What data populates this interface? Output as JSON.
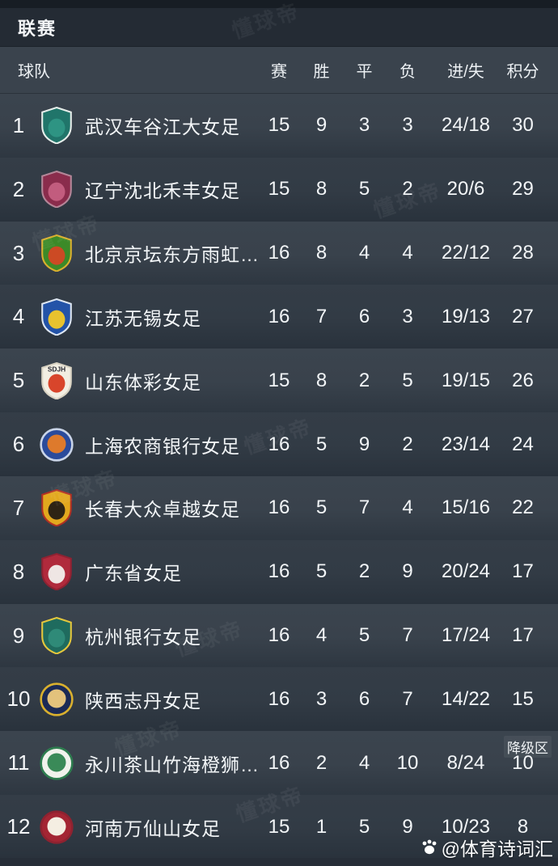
{
  "title_bar": {
    "title": "联赛"
  },
  "table": {
    "columns": {
      "team": "球队",
      "played": "赛",
      "won": "胜",
      "drawn": "平",
      "lost": "负",
      "goals": "进/失",
      "points": "积分"
    },
    "relegation_label": "降级区",
    "rows": [
      {
        "rank": "1",
        "team": "武汉车谷江大女足",
        "played": "15",
        "won": "9",
        "drawn": "3",
        "lost": "3",
        "goals": "24/18",
        "points": "30",
        "badge": {
          "shape": "shield",
          "c1": "#20756A",
          "c2": "#2E9483",
          "c3": "#E6EEEA",
          "text": ""
        }
      },
      {
        "rank": "2",
        "team": "辽宁沈北禾丰女足",
        "played": "15",
        "won": "8",
        "drawn": "5",
        "lost": "2",
        "goals": "20/6",
        "points": "29",
        "badge": {
          "shape": "shield",
          "c1": "#8A2C4C",
          "c2": "#C25C7E",
          "c3": "#B48698",
          "text": ""
        }
      },
      {
        "rank": "3",
        "team": "北京京坛东方雨虹…",
        "played": "16",
        "won": "8",
        "drawn": "4",
        "lost": "4",
        "goals": "22/12",
        "points": "28",
        "badge": {
          "shape": "shield",
          "c1": "#3C8A28",
          "c2": "#CC4A24",
          "c3": "#D9B02E",
          "text": ""
        }
      },
      {
        "rank": "4",
        "team": "江苏无锡女足",
        "played": "16",
        "won": "7",
        "drawn": "6",
        "lost": "3",
        "goals": "19/13",
        "points": "27",
        "badge": {
          "shape": "shield",
          "c1": "#2353A8",
          "c2": "#E8C22E",
          "c3": "#DDE6F2",
          "text": ""
        }
      },
      {
        "rank": "5",
        "team": "山东体彩女足",
        "played": "15",
        "won": "8",
        "drawn": "2",
        "lost": "5",
        "goals": "19/15",
        "points": "26",
        "badge": {
          "shape": "shield",
          "c1": "#F2EEE2",
          "c2": "#D8452B",
          "c3": "#D8D2C2",
          "text": "SDJH",
          "textColor": "#2A2A33"
        }
      },
      {
        "rank": "6",
        "team": "上海农商银行女足",
        "played": "16",
        "won": "5",
        "drawn": "9",
        "lost": "2",
        "goals": "23/14",
        "points": "24",
        "badge": {
          "shape": "circle",
          "c1": "#2B4B9B",
          "c2": "#DE7A2C",
          "c3": "#C9D4E8",
          "text": ""
        }
      },
      {
        "rank": "7",
        "team": "长春大众卓越女足",
        "played": "16",
        "won": "5",
        "drawn": "7",
        "lost": "4",
        "goals": "15/16",
        "points": "22",
        "badge": {
          "shape": "shield",
          "c1": "#E2A81E",
          "c2": "#2E2414",
          "c3": "#B03024",
          "text": ""
        }
      },
      {
        "rank": "8",
        "team": "广东省女足",
        "played": "16",
        "won": "5",
        "drawn": "2",
        "lost": "9",
        "goals": "20/24",
        "points": "17",
        "badge": {
          "shape": "shield",
          "c1": "#B02A3C",
          "c2": "#EFE6E4",
          "c3": "#8E2232",
          "text": ""
        }
      },
      {
        "rank": "9",
        "team": "杭州银行女足",
        "played": "16",
        "won": "4",
        "drawn": "5",
        "lost": "7",
        "goals": "17/24",
        "points": "17",
        "badge": {
          "shape": "shield",
          "c1": "#1F6B5E",
          "c2": "#2F8A78",
          "c3": "#E4C73C",
          "text": ""
        }
      },
      {
        "rank": "10",
        "team": "陕西志丹女足",
        "played": "16",
        "won": "3",
        "drawn": "6",
        "lost": "7",
        "goals": "14/22",
        "points": "15",
        "badge": {
          "shape": "circle",
          "c1": "#1B2A55",
          "c2": "#E3C27C",
          "c3": "#D9B02E",
          "text": ""
        }
      },
      {
        "rank": "11",
        "team": "永川茶山竹海橙狮…",
        "played": "16",
        "won": "2",
        "drawn": "4",
        "lost": "10",
        "goals": "8/24",
        "points": "10",
        "badge": {
          "shape": "circle",
          "c1": "#F1F2EC",
          "c2": "#3A8A58",
          "c3": "#2E7D4F",
          "text": ""
        }
      },
      {
        "rank": "12",
        "team": "河南万仙山女足",
        "played": "15",
        "won": "1",
        "drawn": "5",
        "lost": "9",
        "goals": "10/23",
        "points": "8",
        "badge": {
          "shape": "circle",
          "c1": "#A32533",
          "c2": "#F4EEE2",
          "c3": "#8E2230",
          "text": ""
        }
      }
    ]
  },
  "watermark": {
    "diagonal_text": "懂球帝",
    "credit_text": "@体育诗词汇"
  }
}
